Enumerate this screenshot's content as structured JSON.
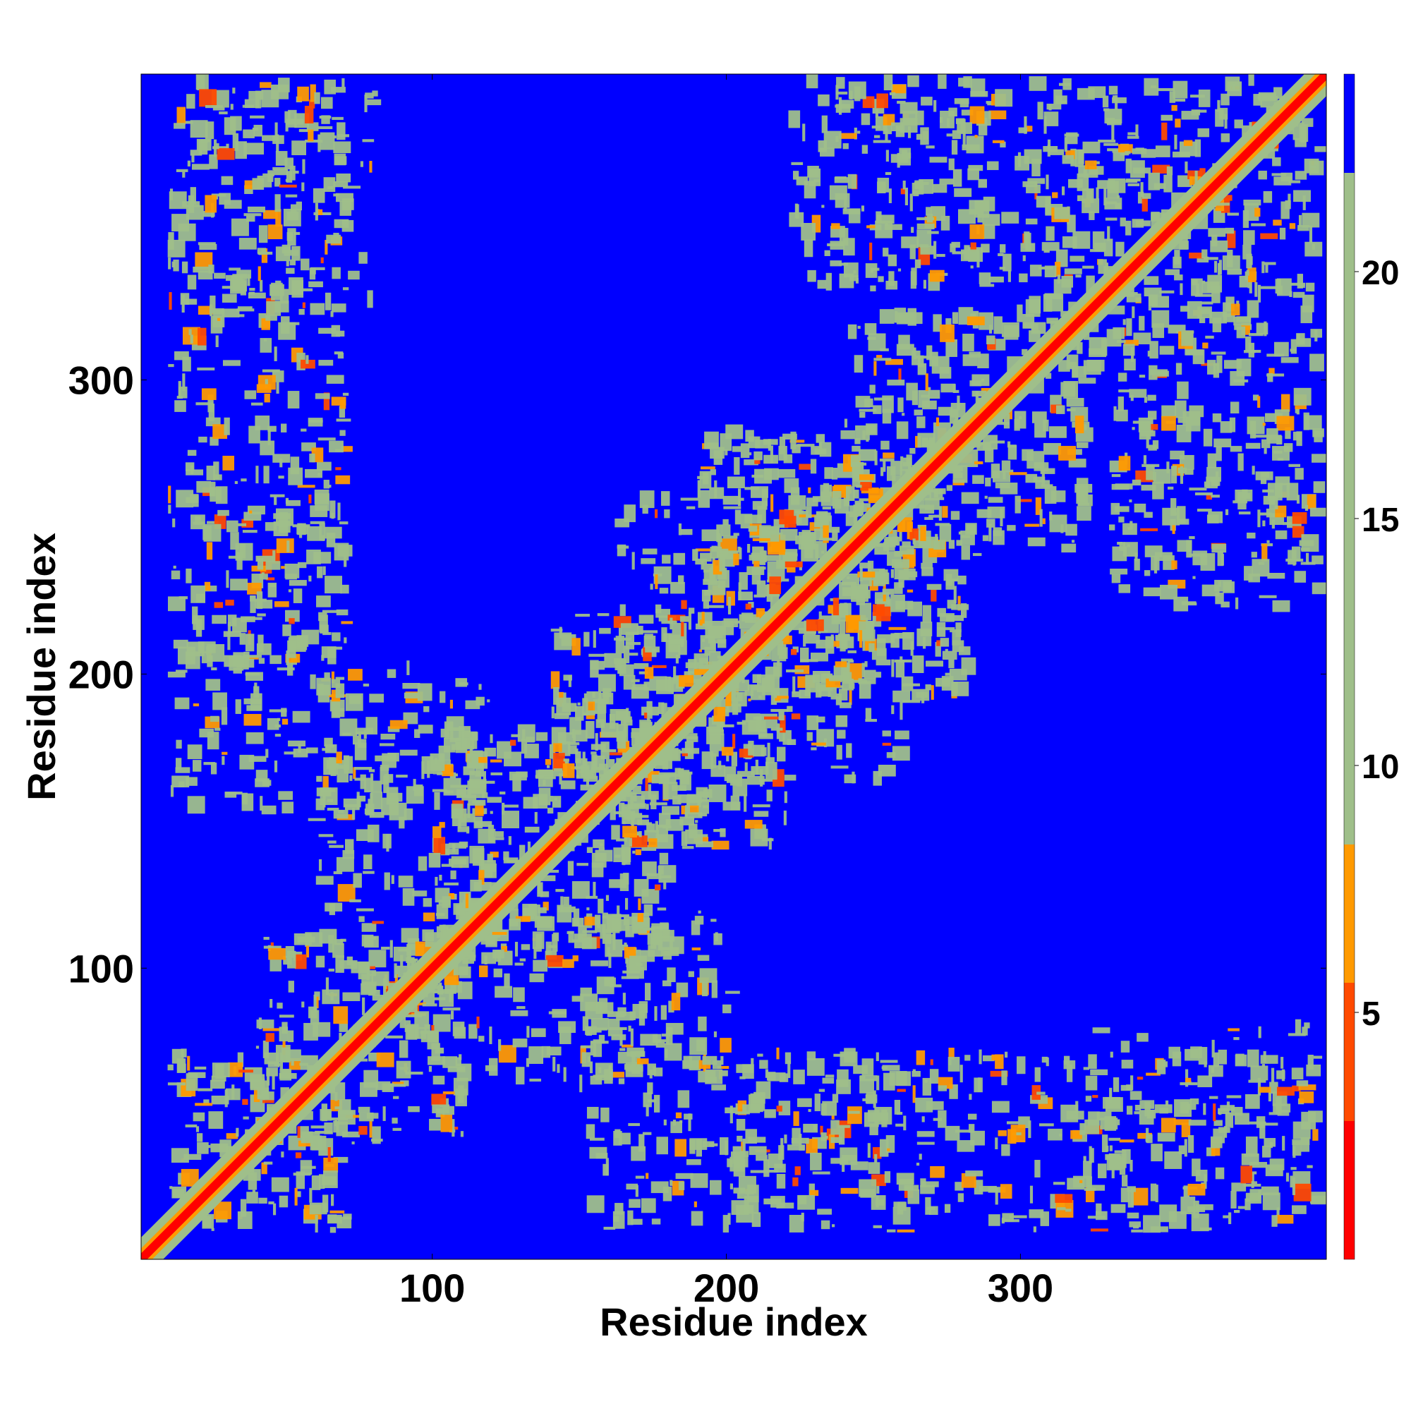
{
  "chart_data": {
    "type": "heatmap",
    "title": "",
    "xlabel": "Residue index",
    "ylabel": "Residue index",
    "xlim": [
      1,
      404
    ],
    "ylim": [
      1,
      404
    ],
    "x_ticks": [
      100,
      200,
      300
    ],
    "y_ticks": [
      100,
      200,
      300
    ],
    "colorbar": {
      "range": [
        0,
        24
      ],
      "ticks": [
        5,
        10,
        15,
        20
      ],
      "bands": [
        {
          "from": 0,
          "to": 2.8,
          "color": "#ff0000"
        },
        {
          "from": 2.8,
          "to": 5.6,
          "color": "#ff4a00"
        },
        {
          "from": 5.6,
          "to": 8.4,
          "color": "#ff9a00"
        },
        {
          "from": 8.4,
          "to": 22,
          "color": "#9fbf8a"
        },
        {
          "from": 22,
          "to": 24,
          "color": "#0000ff"
        }
      ]
    },
    "background_value": 24,
    "diagonal": {
      "from": 1,
      "to": 404
    },
    "contact_regions": [
      {
        "x": [
          10,
          70
        ],
        "y": [
          10,
          70
        ]
      },
      {
        "x": [
          40,
          110
        ],
        "y": [
          40,
          110
        ]
      },
      {
        "x": [
          100,
          180
        ],
        "y": [
          100,
          180
        ]
      },
      {
        "x": [
          140,
          220
        ],
        "y": [
          140,
          220
        ]
      },
      {
        "x": [
          190,
          280
        ],
        "y": [
          190,
          280
        ]
      },
      {
        "x": [
          240,
          320
        ],
        "y": [
          240,
          320
        ]
      },
      {
        "x": [
          300,
          400
        ],
        "y": [
          300,
          400
        ]
      },
      {
        "x": [
          150,
          270
        ],
        "y": [
          10,
          70
        ]
      },
      {
        "x": [
          300,
          400
        ],
        "y": [
          10,
          70
        ]
      },
      {
        "x": [
          10,
          70
        ],
        "y": [
          180,
          300
        ]
      },
      {
        "x": [
          10,
          80
        ],
        "y": [
          320,
          400
        ]
      },
      {
        "x": [
          230,
          290
        ],
        "y": [
          330,
          400
        ]
      },
      {
        "x": [
          330,
          400
        ],
        "y": [
          220,
          300
        ]
      },
      {
        "x": [
          100,
          180
        ],
        "y": [
          60,
          130
        ]
      },
      {
        "x": [
          160,
          250
        ],
        "y": [
          180,
          260
        ]
      },
      {
        "x": [
          60,
          120
        ],
        "y": [
          150,
          200
        ]
      }
    ]
  }
}
